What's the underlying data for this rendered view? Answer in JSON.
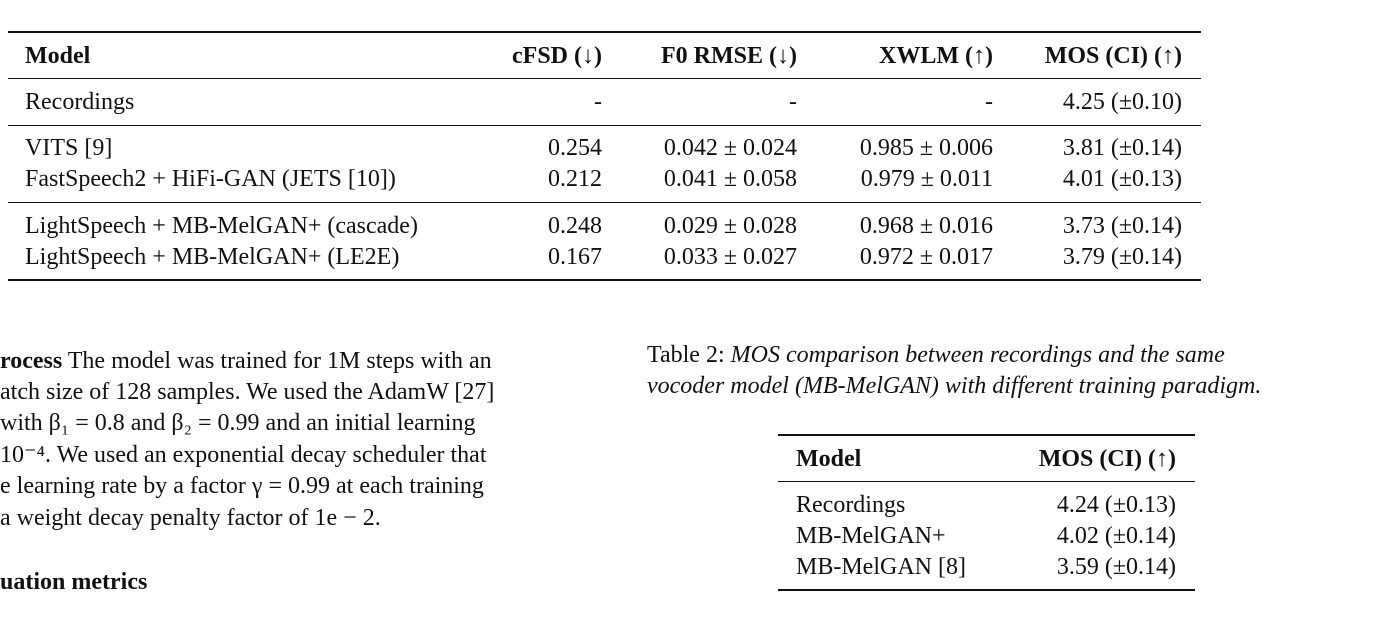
{
  "table1": {
    "columns": [
      "Model",
      "cFSD (↓)",
      "F0 RMSE (↓)",
      "XWLM (↑)",
      "MOS (CI) (↑)"
    ],
    "groups": [
      [
        [
          "Recordings",
          "-",
          "-",
          "-",
          "4.25 (±0.10)"
        ]
      ],
      [
        [
          "VITS [9]",
          "0.254",
          "0.042 ± 0.024",
          "0.985 ± 0.006",
          "3.81 (±0.14)"
        ],
        [
          "FastSpeech2 + HiFi-GAN (JETS [10])",
          "0.212",
          "0.041 ± 0.058",
          "0.979 ± 0.011",
          "4.01 (±0.13)"
        ]
      ],
      [
        [
          "LightSpeech + MB-MelGAN+ (cascade)",
          "0.248",
          "0.029 ± 0.028",
          "0.968 ± 0.016",
          "3.73 (±0.14)"
        ],
        [
          "LightSpeech + MB-MelGAN+ (LE2E)",
          "0.167",
          "0.033 ± 0.027",
          "0.972 ± 0.017",
          "3.79 (±0.14)"
        ]
      ]
    ]
  },
  "body_text": {
    "line1_bold": "rocess",
    "line1_rest": " The model was trained for 1M steps with an",
    "line2": "atch size of 128 samples. We used the AdamW [27]",
    "line3": "with β₁ = 0.8 and β₂ = 0.99 and an initial learning",
    "line4": " 10⁻⁴. We used an exponential decay scheduler that",
    "line5": "e learning rate by a factor γ = 0.99 at each training",
    "line6": "a weight decay penalty factor of 1e − 2.",
    "section_heading": "uation metrics"
  },
  "table2": {
    "caption_label": "Table 2:",
    "caption_line1": "MOS comparison between recordings and the same",
    "caption_line2": "vocoder model (MB-MelGAN) with different training paradigm.",
    "columns": [
      "Model",
      "MOS (CI) (↑)"
    ],
    "rows": [
      [
        "Recordings",
        "4.24 (±0.13)"
      ],
      [
        "MB-MelGAN+",
        "4.02 (±0.14)"
      ],
      [
        "MB-MelGAN [8]",
        "3.59 (±0.14)"
      ]
    ]
  }
}
